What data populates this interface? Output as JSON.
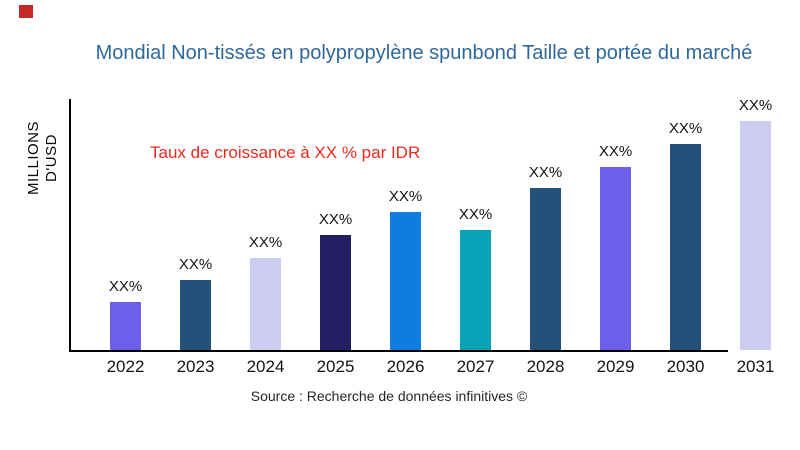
{
  "page": {
    "background": "#ffffff"
  },
  "marker": {
    "color": "#c62828"
  },
  "title": {
    "text": "Mondial Non-tissés en polypropylène spunbond Taille et portée du marché",
    "color": "#30689b"
  },
  "growth_note": {
    "text": "Taux de croissance à XX % par IDR",
    "color": "#ea2a1f"
  },
  "source": {
    "text": "Source : Recherche de données infinitives ©"
  },
  "chart_data": {
    "type": "bar",
    "title": "Mondial Non-tissés en polypropylène spunbond Taille et portée du marché",
    "xlabel": "",
    "ylabel": "MILLIONS D'USD",
    "categories": [
      "2022",
      "2023",
      "2024",
      "2025",
      "2026",
      "2027",
      "2028",
      "2029",
      "2030",
      "2031"
    ],
    "values": [
      48,
      70,
      92,
      115,
      138,
      120,
      162,
      183,
      206,
      229
    ],
    "value_note": "actual magnitudes masked in source image; values are relative bar heights (axis unlabeled)",
    "bar_value_labels": [
      "XX%",
      "XX%",
      "XX%",
      "XX%",
      "XX%",
      "XX%",
      "XX%",
      "XX%",
      "XX%",
      "XX%"
    ],
    "bar_colors": [
      "#6c60ea",
      "#25507a",
      "#cbccf0",
      "#231f62",
      "#0e7ce0",
      "#06a3b6",
      "#25507a",
      "#6c60ea",
      "#25507a",
      "#cbccf0"
    ],
    "annotation": "Taux de croissance à XX % par IDR",
    "legend": false,
    "grid": false,
    "axis_color": "#000000",
    "ylim": [
      0,
      240
    ]
  }
}
